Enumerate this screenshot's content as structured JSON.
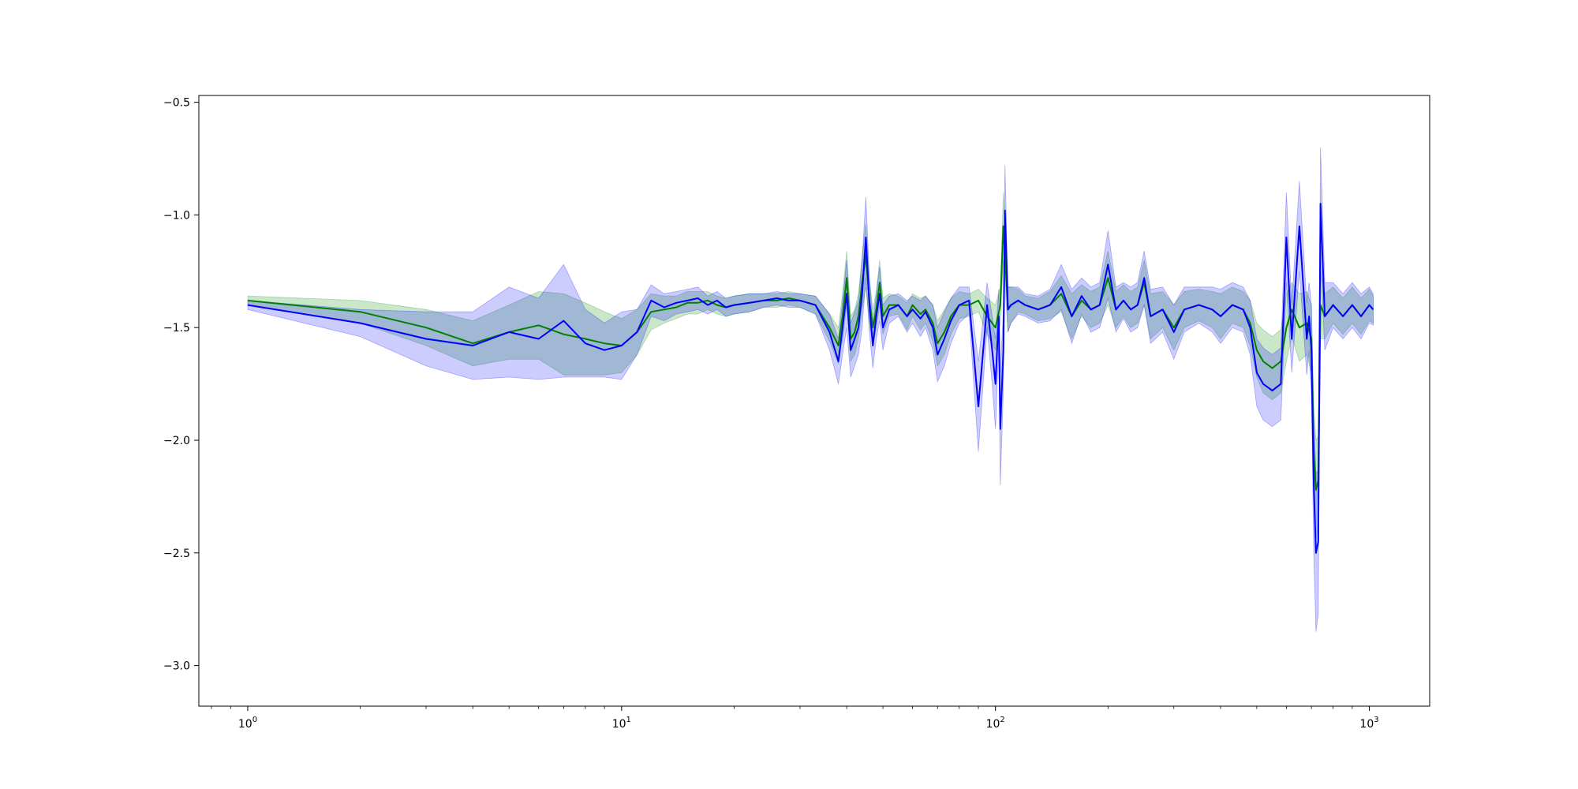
{
  "chart_data": {
    "type": "line",
    "title": "",
    "xlabel": "",
    "ylabel": "",
    "xscale": "log",
    "xlim": [
      0.74,
      1450
    ],
    "ylim": [
      -3.18,
      -0.47
    ],
    "grid": false,
    "legend": "none",
    "x_ticks": [
      {
        "value": 1,
        "base": "10",
        "exp": "0"
      },
      {
        "value": 10,
        "base": "10",
        "exp": "1"
      },
      {
        "value": 100,
        "base": "10",
        "exp": "2"
      },
      {
        "value": 1000,
        "base": "10",
        "exp": "3"
      }
    ],
    "y_ticks": [
      {
        "value": -0.5,
        "label": "−0.5"
      },
      {
        "value": -1.0,
        "label": "−1.0"
      },
      {
        "value": -1.5,
        "label": "−1.5"
      },
      {
        "value": -2.0,
        "label": "−2.0"
      },
      {
        "value": -2.5,
        "label": "−2.5"
      },
      {
        "value": -3.0,
        "label": "−3.0"
      }
    ],
    "series": [
      {
        "color": "#008000",
        "band_color": "#2ca02c",
        "band_opacity": 0.25,
        "x": [
          1,
          2,
          3,
          4,
          5,
          6,
          7,
          8,
          9,
          10,
          11,
          12,
          13,
          14,
          15,
          16,
          17,
          18,
          19,
          20,
          22,
          24,
          26,
          28,
          30,
          33,
          36,
          38,
          39,
          40,
          41,
          42,
          43,
          44,
          45,
          46,
          47,
          48,
          49,
          50,
          52,
          55,
          58,
          60,
          63,
          65,
          68,
          70,
          73,
          76,
          80,
          85,
          90,
          95,
          100,
          103,
          105,
          108,
          110,
          115,
          120,
          130,
          140,
          150,
          160,
          170,
          180,
          190,
          200,
          210,
          220,
          230,
          240,
          250,
          260,
          280,
          300,
          320,
          350,
          380,
          400,
          430,
          460,
          480,
          500,
          520,
          550,
          580,
          600,
          620,
          650,
          680,
          700,
          710,
          720,
          730,
          740,
          760,
          800,
          850,
          900,
          950,
          1000,
          1024
        ],
        "y": [
          -1.38,
          -1.43,
          -1.5,
          -1.57,
          -1.52,
          -1.49,
          -1.53,
          -1.55,
          -1.57,
          -1.58,
          -1.52,
          -1.43,
          -1.42,
          -1.41,
          -1.39,
          -1.39,
          -1.38,
          -1.4,
          -1.41,
          -1.4,
          -1.39,
          -1.38,
          -1.38,
          -1.37,
          -1.38,
          -1.4,
          -1.5,
          -1.58,
          -1.45,
          -1.28,
          -1.55,
          -1.52,
          -1.45,
          -1.3,
          -1.18,
          -1.38,
          -1.5,
          -1.42,
          -1.3,
          -1.45,
          -1.4,
          -1.4,
          -1.45,
          -1.4,
          -1.44,
          -1.42,
          -1.48,
          -1.57,
          -1.52,
          -1.45,
          -1.4,
          -1.4,
          -1.38,
          -1.45,
          -1.5,
          -1.4,
          -1.05,
          -1.42,
          -1.4,
          -1.38,
          -1.4,
          -1.42,
          -1.4,
          -1.35,
          -1.45,
          -1.38,
          -1.42,
          -1.4,
          -1.28,
          -1.42,
          -1.38,
          -1.42,
          -1.4,
          -1.3,
          -1.45,
          -1.42,
          -1.5,
          -1.42,
          -1.4,
          -1.42,
          -1.45,
          -1.4,
          -1.42,
          -1.48,
          -1.6,
          -1.65,
          -1.68,
          -1.65,
          -1.5,
          -1.42,
          -1.5,
          -1.48,
          -1.55,
          -2.05,
          -2.22,
          -2.18,
          -1.4,
          -1.45,
          -1.4,
          -1.45,
          -1.4,
          -1.45,
          -1.4,
          -1.42
        ],
        "band_width": [
          0.02,
          0.05,
          0.08,
          0.1,
          0.12,
          0.15,
          0.18,
          0.16,
          0.14,
          0.12,
          0.1,
          0.08,
          0.06,
          0.05,
          0.05,
          0.05,
          0.04,
          0.04,
          0.04,
          0.04,
          0.04,
          0.03,
          0.03,
          0.03,
          0.03,
          0.04,
          0.06,
          0.08,
          0.1,
          0.12,
          0.1,
          0.1,
          0.1,
          0.12,
          0.14,
          0.1,
          0.08,
          0.08,
          0.1,
          0.08,
          0.05,
          0.04,
          0.06,
          0.05,
          0.07,
          0.06,
          0.08,
          0.1,
          0.1,
          0.08,
          0.06,
          0.05,
          0.05,
          0.08,
          0.1,
          0.08,
          0.15,
          0.1,
          0.08,
          0.05,
          0.04,
          0.05,
          0.06,
          0.08,
          0.1,
          0.07,
          0.08,
          0.08,
          0.12,
          0.08,
          0.07,
          0.08,
          0.08,
          0.1,
          0.1,
          0.08,
          0.1,
          0.08,
          0.07,
          0.08,
          0.1,
          0.08,
          0.08,
          0.1,
          0.12,
          0.14,
          0.14,
          0.14,
          0.15,
          0.12,
          0.15,
          0.14,
          0.15,
          0.2,
          0.22,
          0.2,
          0.15,
          0.1,
          0.08,
          0.08,
          0.08,
          0.08,
          0.07,
          0.06
        ]
      },
      {
        "color": "#0000ff",
        "band_color": "#0000ff",
        "band_opacity": 0.2,
        "x": [
          1,
          2,
          3,
          4,
          5,
          6,
          7,
          8,
          9,
          10,
          11,
          12,
          13,
          14,
          15,
          16,
          17,
          18,
          19,
          20,
          22,
          24,
          26,
          28,
          30,
          33,
          36,
          38,
          39,
          40,
          41,
          42,
          43,
          44,
          45,
          46,
          47,
          48,
          49,
          50,
          52,
          55,
          58,
          60,
          63,
          65,
          68,
          70,
          73,
          76,
          80,
          85,
          90,
          95,
          98,
          100,
          102,
          103,
          105,
          106,
          108,
          110,
          115,
          120,
          130,
          140,
          150,
          160,
          170,
          180,
          190,
          200,
          210,
          220,
          230,
          240,
          250,
          260,
          280,
          300,
          320,
          350,
          380,
          400,
          430,
          460,
          480,
          500,
          520,
          550,
          580,
          600,
          620,
          650,
          680,
          690,
          700,
          710,
          720,
          730,
          740,
          760,
          800,
          850,
          900,
          950,
          1000,
          1024
        ],
        "y": [
          -1.4,
          -1.48,
          -1.55,
          -1.58,
          -1.52,
          -1.55,
          -1.47,
          -1.57,
          -1.6,
          -1.58,
          -1.52,
          -1.38,
          -1.41,
          -1.39,
          -1.38,
          -1.37,
          -1.4,
          -1.38,
          -1.41,
          -1.4,
          -1.39,
          -1.38,
          -1.37,
          -1.38,
          -1.38,
          -1.4,
          -1.52,
          -1.65,
          -1.5,
          -1.35,
          -1.6,
          -1.55,
          -1.5,
          -1.35,
          -1.1,
          -1.4,
          -1.58,
          -1.45,
          -1.35,
          -1.5,
          -1.42,
          -1.4,
          -1.45,
          -1.42,
          -1.46,
          -1.43,
          -1.5,
          -1.62,
          -1.55,
          -1.47,
          -1.4,
          -1.38,
          -1.85,
          -1.4,
          -1.6,
          -1.75,
          -1.45,
          -1.95,
          -1.6,
          -0.98,
          -1.42,
          -1.4,
          -1.38,
          -1.4,
          -1.42,
          -1.4,
          -1.32,
          -1.45,
          -1.36,
          -1.42,
          -1.4,
          -1.22,
          -1.42,
          -1.38,
          -1.42,
          -1.4,
          -1.28,
          -1.45,
          -1.42,
          -1.52,
          -1.42,
          -1.4,
          -1.42,
          -1.45,
          -1.4,
          -1.42,
          -1.5,
          -1.7,
          -1.75,
          -1.78,
          -1.75,
          -1.1,
          -1.55,
          -1.05,
          -1.55,
          -1.45,
          -1.6,
          -2.2,
          -2.5,
          -2.45,
          -0.95,
          -1.45,
          -1.4,
          -1.45,
          -1.4,
          -1.45,
          -1.4,
          -1.42
        ],
        "band_width": [
          0.02,
          0.06,
          0.12,
          0.15,
          0.2,
          0.18,
          0.25,
          0.15,
          0.12,
          0.15,
          0.1,
          0.07,
          0.06,
          0.05,
          0.05,
          0.05,
          0.04,
          0.04,
          0.04,
          0.04,
          0.04,
          0.03,
          0.03,
          0.03,
          0.03,
          0.04,
          0.08,
          0.1,
          0.12,
          0.15,
          0.12,
          0.12,
          0.12,
          0.15,
          0.18,
          0.12,
          0.1,
          0.1,
          0.12,
          0.1,
          0.06,
          0.05,
          0.07,
          0.06,
          0.08,
          0.07,
          0.1,
          0.12,
          0.12,
          0.1,
          0.08,
          0.06,
          0.2,
          0.1,
          0.15,
          0.2,
          0.12,
          0.25,
          0.18,
          0.2,
          0.1,
          0.08,
          0.06,
          0.05,
          0.06,
          0.07,
          0.1,
          0.12,
          0.08,
          0.1,
          0.1,
          0.15,
          0.1,
          0.08,
          0.1,
          0.1,
          0.12,
          0.12,
          0.1,
          0.12,
          0.1,
          0.08,
          0.1,
          0.12,
          0.1,
          0.1,
          0.12,
          0.15,
          0.16,
          0.16,
          0.16,
          0.2,
          0.15,
          0.2,
          0.16,
          0.15,
          0.2,
          0.3,
          0.35,
          0.32,
          0.25,
          0.15,
          0.1,
          0.1,
          0.1,
          0.1,
          0.08,
          0.07
        ]
      }
    ]
  }
}
